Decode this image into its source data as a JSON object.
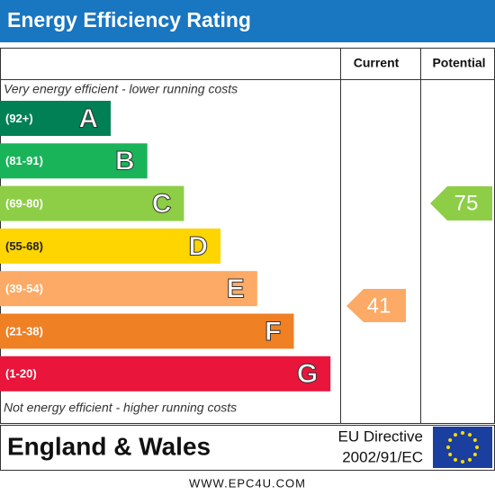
{
  "header": {
    "title": "Energy Efficiency Rating"
  },
  "columns": [
    "Current",
    "Potential"
  ],
  "top_note": "Very energy efficient - lower running costs",
  "bottom_note": "Not energy efficient - higher running costs",
  "bands": [
    {
      "range": "(92+)",
      "letter": "A",
      "color": "#008054"
    },
    {
      "range": "(81-91)",
      "letter": "B",
      "color": "#19b459"
    },
    {
      "range": "(69-80)",
      "letter": "C",
      "color": "#8dce46"
    },
    {
      "range": "(55-68)",
      "letter": "D",
      "color": "#ffd500"
    },
    {
      "range": "(39-54)",
      "letter": "E",
      "color": "#fcaa65"
    },
    {
      "range": "(21-38)",
      "letter": "F",
      "color": "#ef8023"
    },
    {
      "range": "(1-20)",
      "letter": "G",
      "color": "#e9153b"
    }
  ],
  "current": {
    "value": "41",
    "color": "#fcaa65"
  },
  "potential": {
    "value": "75",
    "color": "#8dce46"
  },
  "footer": {
    "region": "England & Wales",
    "directive": [
      "EU Directive",
      "2002/91/EC"
    ]
  },
  "website": "WWW.EPC4U.COM"
}
